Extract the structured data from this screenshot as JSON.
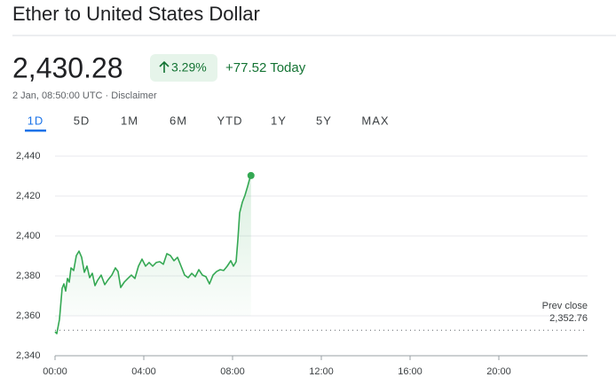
{
  "header": {
    "title": "Ether to United States Dollar",
    "price": "2,430.28",
    "change_percent": "3.29%",
    "change_today": "+77.52 Today",
    "timestamp": "2 Jan, 08:50:00 UTC · Disclaimer"
  },
  "tabs": [
    "1D",
    "5D",
    "1M",
    "6M",
    "YTD",
    "1Y",
    "5Y",
    "MAX"
  ],
  "chart_data": {
    "type": "line",
    "series": [
      {
        "name": "ETH/USD",
        "color": "#34a853",
        "x": [
          0,
          0.08,
          0.2,
          0.32,
          0.4,
          0.48,
          0.56,
          0.64,
          0.72,
          0.84,
          0.96,
          1.08,
          1.2,
          1.32,
          1.44,
          1.56,
          1.68,
          1.8,
          1.92,
          2.08,
          2.24,
          2.4,
          2.56,
          2.72,
          2.84,
          2.96,
          3.12,
          3.28,
          3.44,
          3.6,
          3.76,
          3.92,
          4.08,
          4.24,
          4.4,
          4.56,
          4.72,
          4.88,
          5.04,
          5.2,
          5.36,
          5.52,
          5.68,
          5.84,
          6.0,
          6.16,
          6.32,
          6.48,
          6.64,
          6.8,
          6.96,
          7.12,
          7.28,
          7.44,
          7.6,
          7.76,
          7.92,
          8.04,
          8.16,
          8.24,
          8.32,
          8.44,
          8.56,
          8.68,
          8.8,
          8.83
        ],
        "values": [
          2352.0,
          2351.1,
          2358.2,
          2373.8,
          2376.0,
          2372.4,
          2378.7,
          2376.9,
          2384.0,
          2382.7,
          2390.2,
          2392.4,
          2389.3,
          2381.8,
          2384.9,
          2379.1,
          2381.3,
          2375.1,
          2377.8,
          2380.4,
          2375.6,
          2378.2,
          2380.4,
          2384.0,
          2382.2,
          2374.2,
          2376.9,
          2378.7,
          2380.4,
          2378.7,
          2384.9,
          2388.4,
          2384.9,
          2386.7,
          2384.9,
          2386.7,
          2387.1,
          2385.8,
          2391.1,
          2390.2,
          2387.6,
          2389.3,
          2384.9,
          2380.4,
          2379.1,
          2381.3,
          2379.6,
          2383.1,
          2380.4,
          2379.6,
          2376.0,
          2380.4,
          2382.2,
          2383.1,
          2382.7,
          2384.9,
          2387.6,
          2384.9,
          2387.1,
          2398.2,
          2411.6,
          2416.9,
          2420.4,
          2424.9,
          2429.8,
          2430.28
        ]
      }
    ],
    "prev_close_label": "Prev close",
    "prev_close": {
      "value": 2352.76,
      "label": "2,352.76"
    },
    "xlim": [
      0,
      24
    ],
    "xticks": [
      {
        "value": 0,
        "label": "00:00"
      },
      {
        "value": 4,
        "label": "04:00"
      },
      {
        "value": 8,
        "label": "08:00"
      },
      {
        "value": 12,
        "label": "12:00"
      },
      {
        "value": 16,
        "label": "16:00"
      },
      {
        "value": 20,
        "label": "20:00"
      }
    ],
    "ylim": [
      2340,
      2440
    ],
    "yticks": [
      {
        "value": 2340,
        "label": "2,340"
      },
      {
        "value": 2360,
        "label": "2,360"
      },
      {
        "value": 2380,
        "label": "2,380"
      },
      {
        "value": 2400,
        "label": "2,400"
      },
      {
        "value": 2420,
        "label": "2,420"
      },
      {
        "value": 2440,
        "label": "2,440"
      }
    ],
    "grid": true
  }
}
